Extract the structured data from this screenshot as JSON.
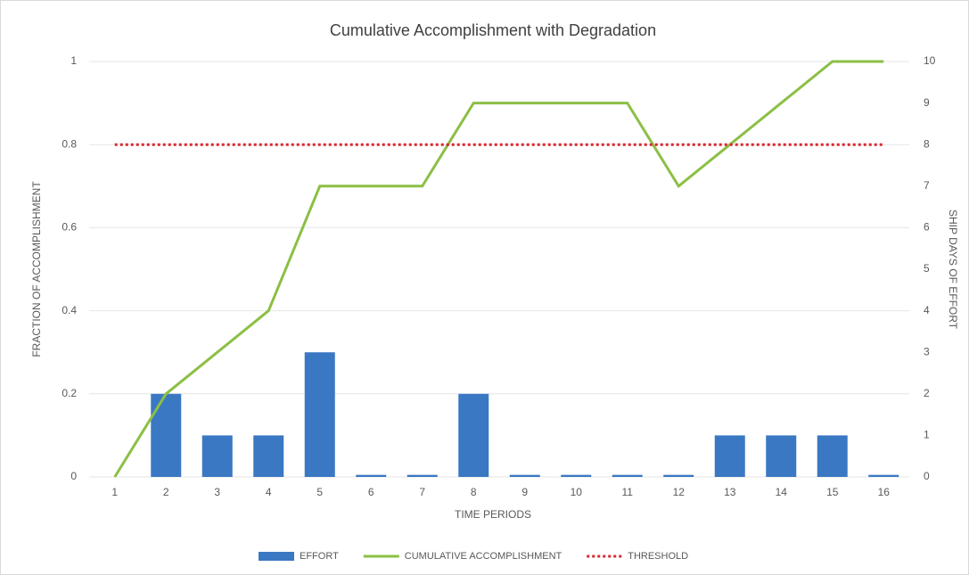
{
  "chart_data": {
    "type": "bar-line",
    "title": "Cumulative Accomplishment with Degradation",
    "xlabel": "TIME PERIODS",
    "ylabel": "FRACTION OF ACCOMPLISHMENT",
    "y2label": "SHIP DAYS OF EFFORT",
    "categories": [
      "1",
      "2",
      "3",
      "4",
      "5",
      "6",
      "7",
      "8",
      "9",
      "10",
      "11",
      "12",
      "13",
      "14",
      "15",
      "16"
    ],
    "series": [
      {
        "name": "EFFORT",
        "type": "bar",
        "axis": "y2",
        "color": "#3a78c3",
        "values": [
          0,
          2,
          1,
          1,
          3,
          0.05,
          0.05,
          2,
          0.05,
          0.05,
          0.05,
          0.05,
          1,
          1,
          1,
          0.05
        ]
      },
      {
        "name": "CUMULATIVE ACCOMPLISHMENT",
        "type": "line",
        "color": "#8cbf45",
        "values": [
          0,
          0.2,
          0.3,
          0.4,
          0.7,
          0.7,
          0.7,
          0.9,
          0.9,
          0.9,
          0.9,
          0.7,
          0.8,
          0.9,
          1,
          1
        ]
      },
      {
        "name": "THRESHOLD",
        "type": "dotted-line",
        "color": "#d9282f",
        "values": [
          0.8,
          0.8,
          0.8,
          0.8,
          0.8,
          0.8,
          0.8,
          0.8,
          0.8,
          0.8,
          0.8,
          0.8,
          0.8,
          0.8,
          0.8,
          0.8
        ]
      }
    ],
    "ylim": [
      0,
      1
    ],
    "yticks": [
      0,
      0.2,
      0.4,
      0.6,
      0.8,
      1
    ],
    "y2lim": [
      0,
      10
    ],
    "y2ticks": [
      0,
      1,
      2,
      3,
      4,
      5,
      6,
      7,
      8,
      9,
      10
    ],
    "grid": true,
    "legend": "bottom"
  }
}
